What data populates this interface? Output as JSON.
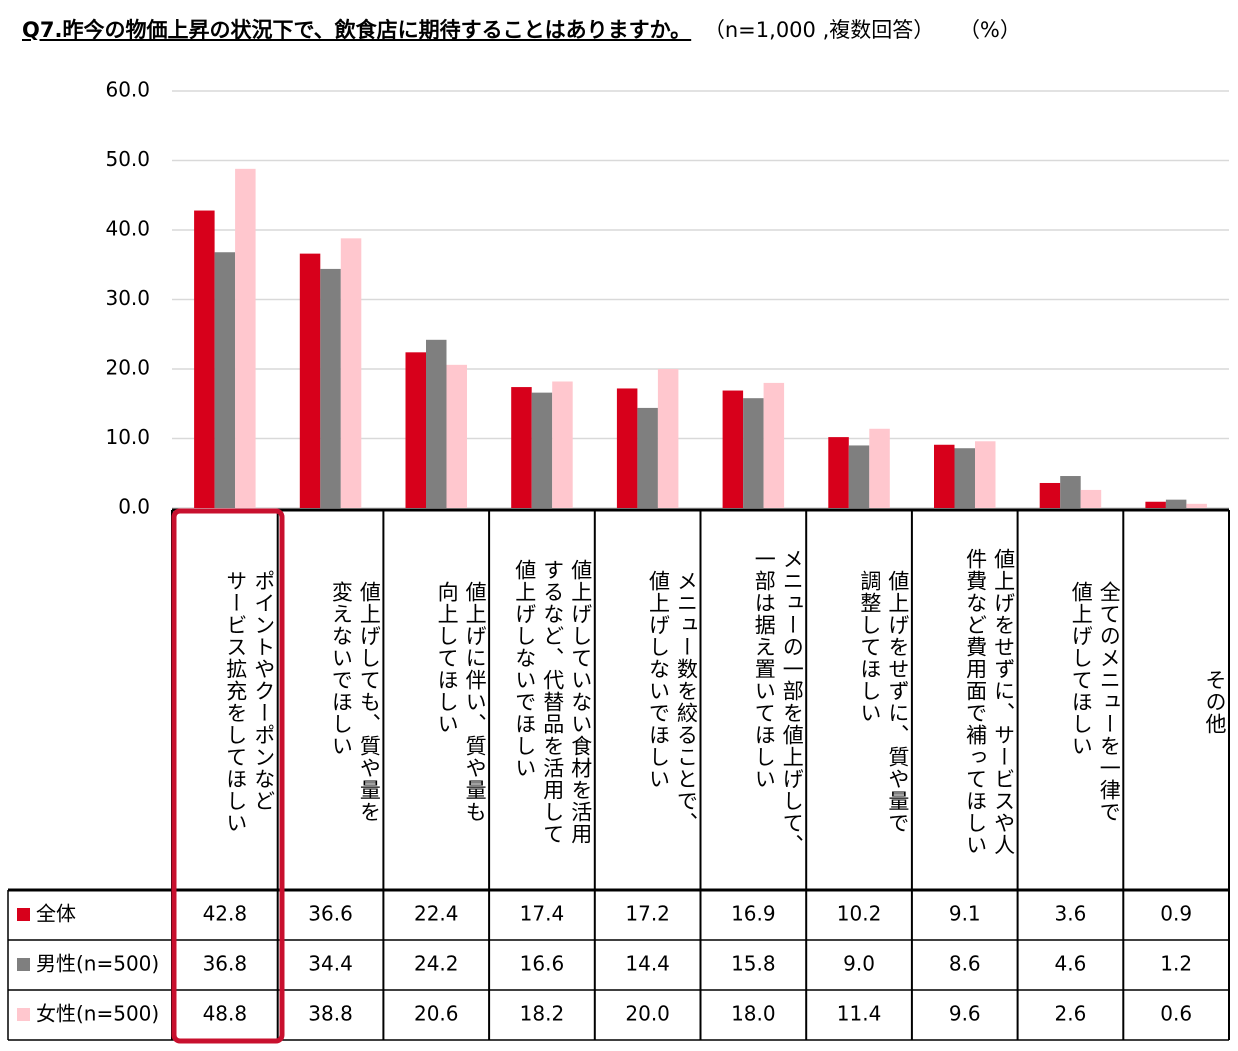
{
  "chart_data": {
    "type": "bar",
    "title": "Q7.昨今の物価上昇の状況下で、飲食店に期待することはありますか。",
    "subtitle": "（n=1,000 ,複数回答）",
    "unit": "（%）",
    "categories": [
      "ポイントやクーポンなど\nサービス拡充をしてほしい",
      "値上げしても、質や量を\n変えないでほしい",
      "値上げに伴い、質や量も\n向上してほしい",
      "値上げしていない食材を活用\nするなど、代替品を活用して\n値上げしないでほしい",
      "メニュー数を絞ることで、\n値上げしないでほしい",
      "メニューの一部を値上げして、\n一部は据え置いてほしい",
      "値上げをせずに、質や量で\n調整してほしい",
      "値上げをせずに、サービスや人\n件費など費用面で補ってほしい",
      "全てのメニューを一律で\n値上げしてほしい",
      "その他"
    ],
    "series": [
      {
        "name": "全体",
        "color": "#d7001b",
        "values": [
          42.8,
          36.6,
          22.4,
          17.4,
          17.2,
          16.9,
          10.2,
          9.1,
          3.6,
          0.9
        ],
        "value_labels": [
          "42.8",
          "36.6",
          "22.4",
          "17.4",
          "17.2",
          "16.9",
          "10.2",
          "9.1",
          "3.6",
          "0.9"
        ]
      },
      {
        "name": "男性(n=500)",
        "color": "#7f7f7f",
        "values": [
          36.8,
          34.4,
          24.2,
          16.6,
          14.4,
          15.8,
          9,
          8.6,
          4.6,
          1.2
        ],
        "value_labels": [
          "36.8",
          "34.4",
          "24.2",
          "16.6",
          "14.4",
          "15.8",
          "9.0",
          "8.6",
          "4.6",
          "1.2"
        ]
      },
      {
        "name": "女性(n=500)",
        "color": "#ffc7ce",
        "values": [
          48.8,
          38.8,
          20.6,
          18.2,
          20,
          18,
          11.4,
          9.6,
          2.6,
          0.6
        ],
        "value_labels": [
          "48.8",
          "38.8",
          "20.6",
          "18.2",
          "20.0",
          "18.0",
          "11.4",
          "9.6",
          "2.6",
          "0.6"
        ]
      }
    ],
    "ylim": [
      0,
      60
    ],
    "yticks": [
      {
        "value": 0,
        "label": "0.0"
      },
      {
        "value": 10,
        "label": "10.0"
      },
      {
        "value": 20,
        "label": "20.0"
      },
      {
        "value": 30,
        "label": "30.0"
      },
      {
        "value": 40,
        "label": "40.0"
      },
      {
        "value": 50,
        "label": "50.0"
      },
      {
        "value": 60,
        "label": "60.0"
      }
    ],
    "grid": true
  }
}
